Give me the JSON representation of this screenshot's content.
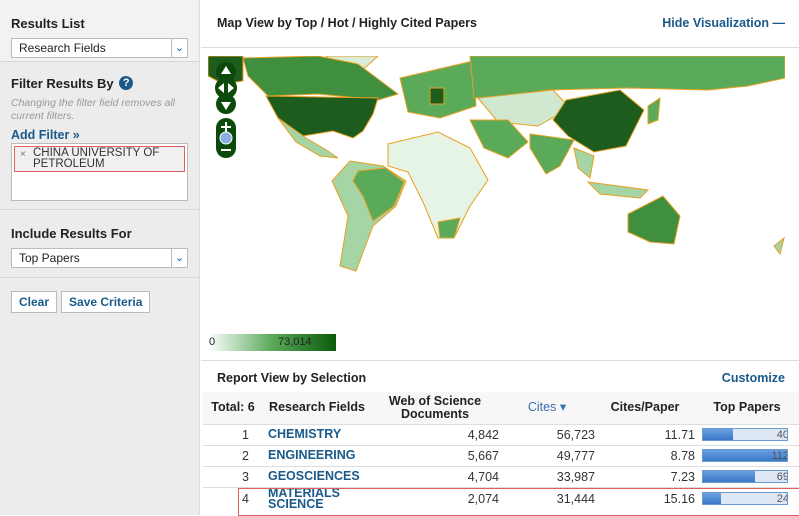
{
  "sidebar": {
    "results_list": {
      "label": "Results List",
      "value": "Research Fields"
    },
    "filter": {
      "label": "Filter Results By",
      "help": "?",
      "note": "Changing the filter field removes all current filters.",
      "add_filter": "Add Filter »",
      "tags": [
        "CHINA UNIVERSITY OF PETROLEUM"
      ],
      "remove": "×"
    },
    "include": {
      "label": "Include Results For",
      "value": "Top Papers"
    },
    "buttons": {
      "clear": "Clear",
      "save": "Save Criteria"
    }
  },
  "map": {
    "title": "Map View by Top / Hot / Highly Cited Papers",
    "hide": "Hide Visualization",
    "legend_min": "0",
    "legend_max": "73,014",
    "colors": {
      "low": "#ffffff",
      "high": "#0c5a0c",
      "border": "#e8a020"
    }
  },
  "report": {
    "title": "Report View by Selection",
    "customize": "Customize",
    "columns": {
      "total": "Total: 6",
      "field": "Research Fields",
      "docs": "Web of Science Documents",
      "cites": "Cites ▾",
      "cpp": "Cites/Paper",
      "top": "Top Papers"
    },
    "rows": [
      {
        "rank": "1",
        "field": "CHEMISTRY",
        "docs": "4,842",
        "cites": "56,723",
        "cpp": "11.71",
        "top": "40",
        "top_value": 40
      },
      {
        "rank": "2",
        "field": "ENGINEERING",
        "docs": "5,667",
        "cites": "49,777",
        "cpp": "8.78",
        "top": "112",
        "top_value": 112
      },
      {
        "rank": "3",
        "field": "GEOSCIENCES",
        "docs": "4,704",
        "cites": "33,987",
        "cpp": "7.23",
        "top": "69",
        "top_value": 69
      },
      {
        "rank": "4",
        "field": "MATERIALS SCIENCE",
        "docs": "2,074",
        "cites": "31,444",
        "cpp": "15.16",
        "top": "24",
        "top_value": 24
      }
    ]
  }
}
